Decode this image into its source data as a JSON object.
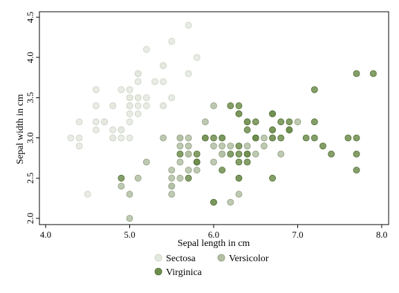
{
  "chart_data": {
    "type": "scatter",
    "title": "",
    "xlabel": "Sepal length in cm",
    "ylabel": "Sepal width in cm",
    "xlim": [
      4.0,
      8.0
    ],
    "ylim": [
      2.0,
      4.5
    ],
    "x_ticks": [
      "4.0",
      "5.0",
      "6.0",
      "7.0",
      "8.0"
    ],
    "y_ticks": [
      "2.0",
      "2.5",
      "3.0",
      "3.5",
      "4.0",
      "4.5"
    ],
    "grid": false,
    "legend_position": "bottom",
    "series": [
      {
        "name": "Sectosa",
        "color": "#e4e9df",
        "stroke": "#c9d1c1",
        "points": [
          [
            5.1,
            3.5
          ],
          [
            4.9,
            3.0
          ],
          [
            4.7,
            3.2
          ],
          [
            4.6,
            3.1
          ],
          [
            5.0,
            3.6
          ],
          [
            5.4,
            3.9
          ],
          [
            4.6,
            3.4
          ],
          [
            5.0,
            3.4
          ],
          [
            4.4,
            2.9
          ],
          [
            4.9,
            3.1
          ],
          [
            5.4,
            3.7
          ],
          [
            4.8,
            3.4
          ],
          [
            4.8,
            3.0
          ],
          [
            4.3,
            3.0
          ],
          [
            5.8,
            4.0
          ],
          [
            5.7,
            4.4
          ],
          [
            5.4,
            3.9
          ],
          [
            5.1,
            3.5
          ],
          [
            5.7,
            3.8
          ],
          [
            5.1,
            3.8
          ],
          [
            5.4,
            3.4
          ],
          [
            5.1,
            3.7
          ],
          [
            4.6,
            3.6
          ],
          [
            5.1,
            3.3
          ],
          [
            4.8,
            3.4
          ],
          [
            5.0,
            3.0
          ],
          [
            5.0,
            3.4
          ],
          [
            5.2,
            3.5
          ],
          [
            5.2,
            3.4
          ],
          [
            4.7,
            3.2
          ],
          [
            4.8,
            3.1
          ],
          [
            5.4,
            3.4
          ],
          [
            5.2,
            4.1
          ],
          [
            5.5,
            4.2
          ],
          [
            4.9,
            3.1
          ],
          [
            5.0,
            3.2
          ],
          [
            5.5,
            3.5
          ],
          [
            4.9,
            3.6
          ],
          [
            4.4,
            3.0
          ],
          [
            5.1,
            3.4
          ],
          [
            5.0,
            3.5
          ],
          [
            4.5,
            2.3
          ],
          [
            4.4,
            3.2
          ],
          [
            5.0,
            3.5
          ],
          [
            5.1,
            3.8
          ],
          [
            4.8,
            3.0
          ],
          [
            5.1,
            3.8
          ],
          [
            4.6,
            3.2
          ],
          [
            5.3,
            3.7
          ],
          [
            5.0,
            3.3
          ]
        ]
      },
      {
        "name": "Versicolor",
        "color": "#b3c0a5",
        "stroke": "#8f9e80",
        "points": [
          [
            7.0,
            3.2
          ],
          [
            6.4,
            3.2
          ],
          [
            6.9,
            3.1
          ],
          [
            5.5,
            2.3
          ],
          [
            6.5,
            2.8
          ],
          [
            5.7,
            2.8
          ],
          [
            6.3,
            3.3
          ],
          [
            4.9,
            2.4
          ],
          [
            6.6,
            2.9
          ],
          [
            5.2,
            2.7
          ],
          [
            5.0,
            2.0
          ],
          [
            5.9,
            3.0
          ],
          [
            6.0,
            2.2
          ],
          [
            6.1,
            2.9
          ],
          [
            5.6,
            2.9
          ],
          [
            6.7,
            3.1
          ],
          [
            5.6,
            3.0
          ],
          [
            5.8,
            2.7
          ],
          [
            6.2,
            2.2
          ],
          [
            5.6,
            2.5
          ],
          [
            5.9,
            3.2
          ],
          [
            6.1,
            2.8
          ],
          [
            6.3,
            2.5
          ],
          [
            6.1,
            2.8
          ],
          [
            6.4,
            2.9
          ],
          [
            6.6,
            3.0
          ],
          [
            6.8,
            2.8
          ],
          [
            6.7,
            3.0
          ],
          [
            6.0,
            2.9
          ],
          [
            5.7,
            2.6
          ],
          [
            5.5,
            2.4
          ],
          [
            5.5,
            2.4
          ],
          [
            5.8,
            2.7
          ],
          [
            6.0,
            2.7
          ],
          [
            5.4,
            3.0
          ],
          [
            6.0,
            3.4
          ],
          [
            6.7,
            3.1
          ],
          [
            6.3,
            2.3
          ],
          [
            5.6,
            3.0
          ],
          [
            5.5,
            2.5
          ],
          [
            5.5,
            2.6
          ],
          [
            6.1,
            3.0
          ],
          [
            5.8,
            2.6
          ],
          [
            5.0,
            2.3
          ],
          [
            5.6,
            2.7
          ],
          [
            5.7,
            3.0
          ],
          [
            5.7,
            2.9
          ],
          [
            6.2,
            2.9
          ],
          [
            5.1,
            2.5
          ],
          [
            5.7,
            2.8
          ]
        ]
      },
      {
        "name": "Virginica",
        "color": "#6e8e4e",
        "stroke": "#4f6c33",
        "points": [
          [
            6.3,
            3.3
          ],
          [
            5.8,
            2.7
          ],
          [
            7.1,
            3.0
          ],
          [
            6.3,
            2.9
          ],
          [
            6.5,
            3.0
          ],
          [
            7.6,
            3.0
          ],
          [
            4.9,
            2.5
          ],
          [
            7.3,
            2.9
          ],
          [
            6.7,
            2.5
          ],
          [
            7.2,
            3.6
          ],
          [
            6.5,
            3.2
          ],
          [
            6.4,
            2.7
          ],
          [
            6.8,
            3.0
          ],
          [
            5.7,
            2.5
          ],
          [
            5.8,
            2.8
          ],
          [
            6.4,
            3.2
          ],
          [
            6.5,
            3.0
          ],
          [
            7.7,
            3.8
          ],
          [
            7.7,
            2.6
          ],
          [
            6.0,
            2.2
          ],
          [
            6.9,
            3.2
          ],
          [
            5.6,
            2.8
          ],
          [
            7.7,
            2.8
          ],
          [
            6.3,
            2.7
          ],
          [
            6.7,
            3.3
          ],
          [
            7.2,
            3.2
          ],
          [
            6.2,
            2.8
          ],
          [
            6.1,
            3.0
          ],
          [
            6.4,
            2.8
          ],
          [
            7.2,
            3.0
          ],
          [
            7.4,
            2.8
          ],
          [
            7.9,
            3.8
          ],
          [
            6.4,
            2.8
          ],
          [
            6.3,
            2.8
          ],
          [
            6.1,
            2.6
          ],
          [
            7.7,
            3.0
          ],
          [
            6.3,
            3.4
          ],
          [
            6.4,
            3.1
          ],
          [
            6.0,
            3.0
          ],
          [
            6.9,
            3.1
          ],
          [
            6.7,
            3.1
          ],
          [
            6.9,
            3.1
          ],
          [
            5.8,
            2.7
          ],
          [
            6.8,
            3.2
          ],
          [
            6.7,
            3.3
          ],
          [
            6.7,
            3.0
          ],
          [
            6.3,
            2.5
          ],
          [
            6.5,
            3.0
          ],
          [
            6.2,
            3.4
          ],
          [
            5.9,
            3.0
          ]
        ]
      }
    ]
  }
}
